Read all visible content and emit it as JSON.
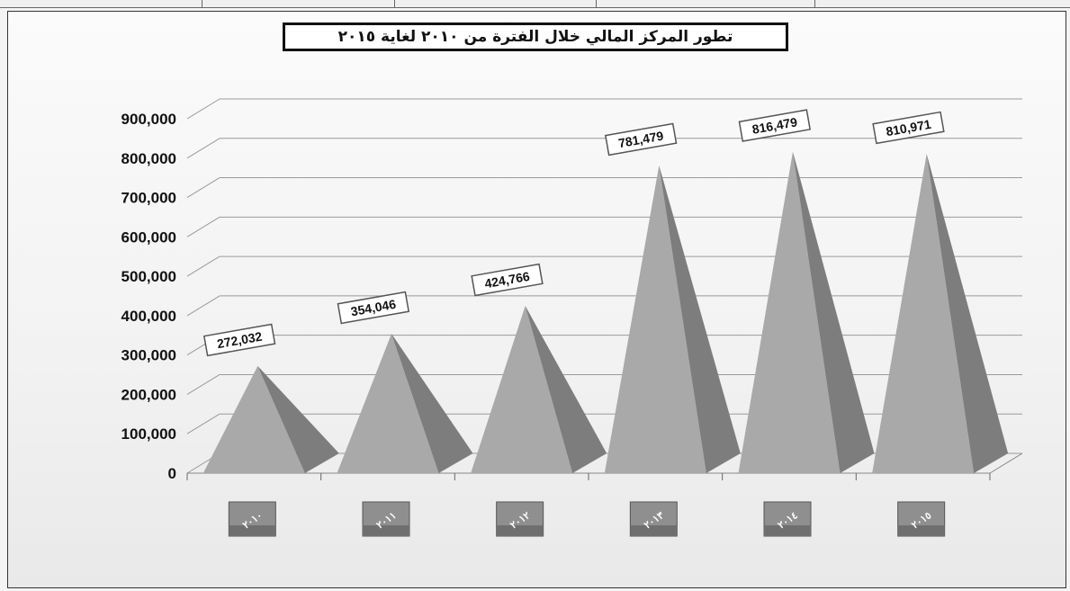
{
  "chart_data": {
    "type": "bar",
    "title": "تطور المركز المالي خلال الفترة من ٢٠١٠ لغاية ٢٠١٥",
    "categories": [
      "٢٠١٠",
      "٢٠١١",
      "٢٠١٢",
      "٢٠١٣",
      "٢٠١٤",
      "٢٠١٥"
    ],
    "values": [
      272032,
      354046,
      424766,
      781479,
      816479,
      810971
    ],
    "value_labels": [
      "272,032",
      "354,046",
      "424,766",
      "781,479",
      "816,479",
      "810,971"
    ],
    "y_ticks": [
      "0",
      "100,000",
      "200,000",
      "300,000",
      "400,000",
      "500,000",
      "600,000",
      "700,000",
      "800,000",
      "900,000"
    ],
    "ylim": [
      0,
      900000
    ],
    "grid": true,
    "legend": "none",
    "colors": {
      "face": "#a9a9a9",
      "side": "#7d7d7d"
    }
  }
}
